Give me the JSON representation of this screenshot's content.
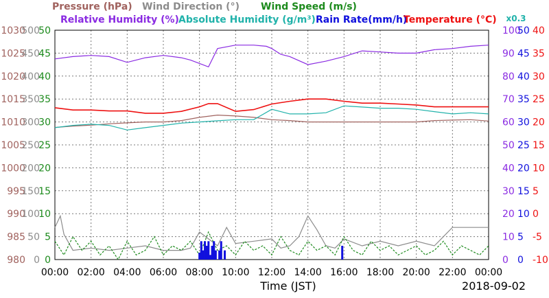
{
  "chart_data": {
    "type": "line",
    "xlabel": "Time (JST)",
    "date": "2018-09-02",
    "x_ticks": [
      "00:00",
      "02:00",
      "04:00",
      "06:00",
      "08:00",
      "10:00",
      "12:00",
      "14:00",
      "16:00",
      "18:00",
      "20:00",
      "22:00",
      "00:00"
    ],
    "legend": [
      {
        "name": "Pressure (hPa)",
        "color": "#a0625e"
      },
      {
        "name": "Wind Direction (°)",
        "color": "#8c8c8c"
      },
      {
        "name": "Wind Speed (m/s)",
        "color": "#1c8a1c"
      },
      {
        "name": "Relative Humidity (%)",
        "color": "#8a2be2"
      },
      {
        "name": "Absolute Humidity (g/m³)",
        "color": "#20b2aa"
      },
      {
        "name": "Rain Rate(mm/h)",
        "color": "#1010dd"
      },
      {
        "name": "Temperature (°C)",
        "color": "#ee1111"
      }
    ],
    "legend_extra": "x0.3",
    "axes": {
      "pressure": {
        "ticks": [
          "1030",
          "1025",
          "1020",
          "1015",
          "1010",
          "1005",
          "1000",
          "995",
          "990",
          "985",
          "980"
        ],
        "color": "#a0625e",
        "ylim": [
          980,
          1030
        ]
      },
      "wind_direction": {
        "ticks": [
          "500",
          "450",
          "400",
          "350",
          "300",
          "250",
          "200",
          "150",
          "100",
          "50",
          "0"
        ],
        "color": "#8c8c8c",
        "ylim": [
          0,
          500
        ]
      },
      "wind_speed": {
        "ticks": [
          "50",
          "45",
          "40",
          "35",
          "30",
          "25",
          "20",
          "15",
          "10",
          "5",
          "0"
        ],
        "color": "#1c8a1c",
        "ylim": [
          0,
          50
        ]
      },
      "relative_humidity": {
        "ticks": [
          "100",
          "90",
          "80",
          "70",
          "60",
          "50",
          "40",
          "30",
          "20",
          "10",
          "0"
        ],
        "color": "#8a2be2",
        "ylim": [
          0,
          100
        ]
      },
      "rain_rate": {
        "ticks": [
          "50",
          "45",
          "40",
          "35",
          "30",
          "25",
          "20",
          "15",
          "10",
          "5",
          "0"
        ],
        "color": "#1010dd",
        "ylim": [
          0,
          50
        ]
      },
      "temperature": {
        "ticks": [
          "40",
          "35",
          "30",
          "25",
          "20",
          "15",
          "10",
          "5",
          "0",
          "-5",
          "-10"
        ],
        "color": "#ee1111",
        "ylim": [
          -10,
          40
        ]
      }
    },
    "grid": true,
    "series": [
      {
        "name": "Temperature (°C)",
        "key": "temperature",
        "axis": "temperature",
        "color": "#ee1111",
        "x": [
          0,
          1,
          2,
          3,
          4,
          5,
          6,
          7,
          8,
          8.5,
          9,
          10,
          11,
          12,
          13,
          14,
          15,
          16,
          17,
          18,
          19,
          20,
          21,
          22,
          23,
          24
        ],
        "y": [
          23.1,
          22.6,
          22.6,
          22.4,
          22.4,
          21.9,
          21.9,
          22.3,
          23.3,
          24.0,
          24.0,
          22.3,
          22.7,
          23.9,
          24.5,
          25.0,
          25.0,
          24.5,
          24.1,
          24.1,
          23.9,
          23.7,
          23.3,
          23.3,
          23.3,
          23.3
        ]
      },
      {
        "name": "Relative Humidity (%)",
        "key": "relative_humidity",
        "axis": "relative_humidity",
        "color": "#8a2be2",
        "x": [
          0,
          1,
          2,
          3,
          4,
          4.5,
          5,
          6,
          7,
          7.5,
          8,
          8.5,
          9,
          10,
          11,
          11.7,
          12,
          12.5,
          13,
          14,
          15,
          16,
          17,
          18,
          19,
          20,
          21,
          22,
          23,
          24
        ],
        "y": [
          87.5,
          88.5,
          89.0,
          88.5,
          86.0,
          87.0,
          88.0,
          89.0,
          88.0,
          87.0,
          85.5,
          84.0,
          92.0,
          93.5,
          93.5,
          93.0,
          92.0,
          89.5,
          88.5,
          85.0,
          86.5,
          88.5,
          91.0,
          90.5,
          90.0,
          90.0,
          91.5,
          92.0,
          93.0,
          93.5
        ]
      },
      {
        "name": "Absolute Humidity (g/m³)",
        "key": "absolute_humidity",
        "axis": "relative_humidity",
        "color": "#20b2aa",
        "x": [
          0,
          1,
          2,
          3,
          4,
          5,
          6,
          7,
          8,
          9,
          10,
          11,
          12,
          12.5,
          13,
          14,
          15,
          16,
          17,
          18,
          19,
          20,
          21,
          22,
          23,
          24
        ],
        "y": [
          57.5,
          58.5,
          59.0,
          58.5,
          56.5,
          57.5,
          58.5,
          59.5,
          60.0,
          60.5,
          61.0,
          61.0,
          65.5,
          64.5,
          63.5,
          63.5,
          64.0,
          67.0,
          66.5,
          66.0,
          66.0,
          65.5,
          64.5,
          63.5,
          64.0,
          63.5
        ]
      },
      {
        "name": "Pressure (hPa)",
        "key": "pressure",
        "axis": "pressure",
        "color": "#a0625e",
        "x": [
          0,
          1,
          2,
          3,
          4,
          5,
          6,
          7,
          8,
          9,
          10,
          11,
          12,
          13,
          14,
          15,
          16,
          17,
          18,
          19,
          20,
          21,
          22,
          23,
          24
        ],
        "y": [
          1008.8,
          1009.1,
          1009.3,
          1009.6,
          1009.8,
          1010.0,
          1010.0,
          1010.3,
          1011.0,
          1011.5,
          1011.3,
          1011.0,
          1010.5,
          1010.3,
          1010.0,
          1010.0,
          1010.0,
          1010.0,
          1010.0,
          1010.0,
          1010.0,
          1010.3,
          1010.4,
          1010.5,
          1010.2
        ]
      },
      {
        "name": "Wind Direction (°)",
        "key": "wind_direction",
        "axis": "wind_direction",
        "color": "#8c8c8c",
        "x": [
          0,
          0.3,
          0.5,
          1,
          2,
          3,
          4,
          5,
          6,
          7,
          7.5,
          8,
          8.5,
          9,
          9.5,
          10,
          11,
          12,
          12.5,
          13,
          13.5,
          14,
          14.5,
          15,
          15.5,
          16,
          17,
          18,
          19,
          20,
          21,
          22,
          23,
          24
        ],
        "y": [
          70,
          95,
          55,
          20,
          25,
          20,
          25,
          30,
          20,
          20,
          25,
          60,
          45,
          30,
          70,
          35,
          40,
          45,
          25,
          30,
          50,
          95,
          65,
          30,
          25,
          45,
          30,
          40,
          30,
          40,
          30,
          70,
          70,
          70
        ]
      },
      {
        "name": "Wind Speed (m/s)",
        "key": "wind_speed",
        "axis": "wind_speed",
        "color": "#1c8a1c",
        "x": [
          0,
          0.5,
          1,
          1.5,
          2,
          2.5,
          3,
          3.5,
          4,
          4.5,
          5,
          5.5,
          6,
          6.5,
          7,
          7.5,
          8,
          8.5,
          9,
          9.5,
          10,
          10.5,
          11,
          11.5,
          12,
          12.5,
          13,
          13.5,
          14,
          14.5,
          15,
          15.5,
          16,
          16.5,
          17,
          17.5,
          18,
          18.5,
          19,
          19.5,
          20,
          20.5,
          21,
          21.5,
          22,
          22.5,
          23,
          23.5,
          24
        ],
        "y": [
          4,
          1,
          5,
          2,
          4,
          1,
          3,
          0,
          4,
          1,
          2,
          5,
          1,
          3,
          2,
          4,
          1,
          6,
          2,
          3,
          1,
          4,
          2,
          3,
          1,
          5,
          2,
          1,
          4,
          2,
          3,
          1,
          5,
          2,
          1,
          4,
          2,
          3,
          1,
          2,
          3,
          1,
          2,
          4,
          1,
          3,
          2,
          1,
          3
        ]
      },
      {
        "name": "Rain Rate(mm/h)",
        "key": "rain_rate",
        "axis": "rain_rate",
        "color": "#1010dd",
        "x": [
          7.8,
          8.0,
          8.1,
          8.2,
          8.3,
          8.4,
          8.5,
          8.6,
          8.7,
          8.8,
          8.9,
          9.0,
          9.1,
          9.2,
          9.3,
          9.4,
          9.5,
          15.8,
          15.9,
          16.0
        ],
        "y": [
          0,
          1.5,
          4,
          2,
          4,
          3,
          4,
          1,
          3,
          4,
          2,
          0,
          2,
          4,
          0,
          2,
          0,
          0,
          3,
          0
        ]
      }
    ]
  }
}
